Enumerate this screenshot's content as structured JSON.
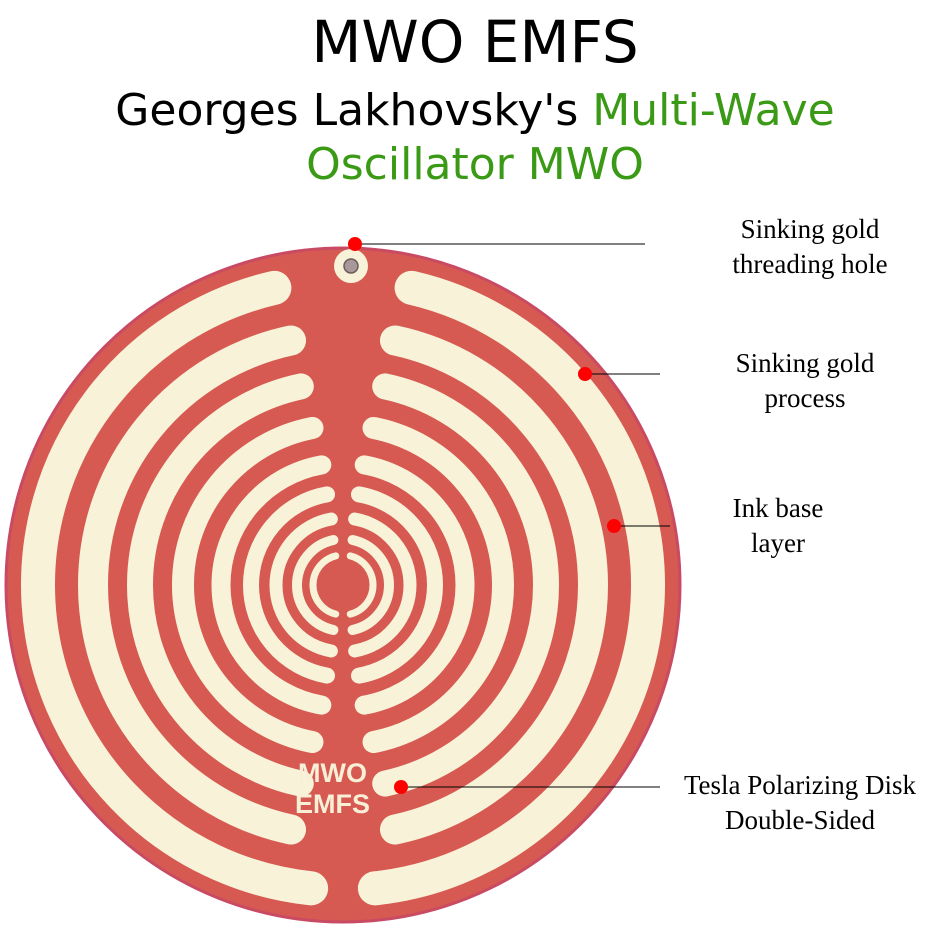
{
  "header": {
    "title": "MWO EMFS",
    "subtitle_black": "Georges Lakhovsky's ",
    "subtitle_green_1": "Multi-Wave",
    "subtitle_green_2": "Oscillator MWO"
  },
  "disk": {
    "engraving_line1": "MWO",
    "engraving_line2": "EMFS"
  },
  "callouts": [
    {
      "line1": "Sinking gold",
      "line2": "threading hole"
    },
    {
      "line1": "Sinking gold",
      "line2": "process"
    },
    {
      "line1": "Ink base",
      "line2": "layer"
    },
    {
      "line1": "Tesla Polarizing Disk",
      "line2": "Double-Sided"
    }
  ],
  "colors": {
    "accent_green": "#3a9a16",
    "disk_red": "#d9584f",
    "gold_cream": "#f8f3d8",
    "dot_red": "#ff0000"
  }
}
